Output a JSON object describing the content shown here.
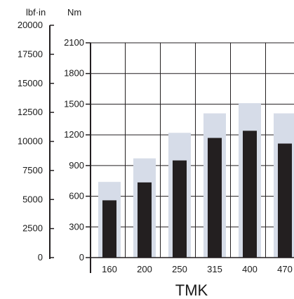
{
  "chart_data": {
    "type": "bar",
    "xlabel": "TMK",
    "categories": [
      "160",
      "200",
      "250",
      "315",
      "400",
      "470"
    ],
    "axes": {
      "left": {
        "unit": "lbf·in",
        "ylim": [
          0,
          20000
        ],
        "ticks": [
          "20000",
          "17500",
          "15000",
          "12500",
          "10000",
          "7500",
          "5000",
          "2500",
          "0"
        ]
      },
      "right": {
        "unit": "Nm",
        "ylim": [
          0,
          2100
        ],
        "ticks": [
          "2100",
          "1800",
          "1500",
          "1200",
          "900",
          "600",
          "300",
          "0"
        ]
      }
    },
    "grid": true,
    "series": [
      {
        "values": [
          740,
          970,
          1220,
          1410,
          1510,
          1410
        ],
        "color": "#d6dce8"
      },
      {
        "values": [
          560,
          735,
          950,
          1170,
          1240,
          1115
        ],
        "color": "#231f20"
      }
    ]
  }
}
